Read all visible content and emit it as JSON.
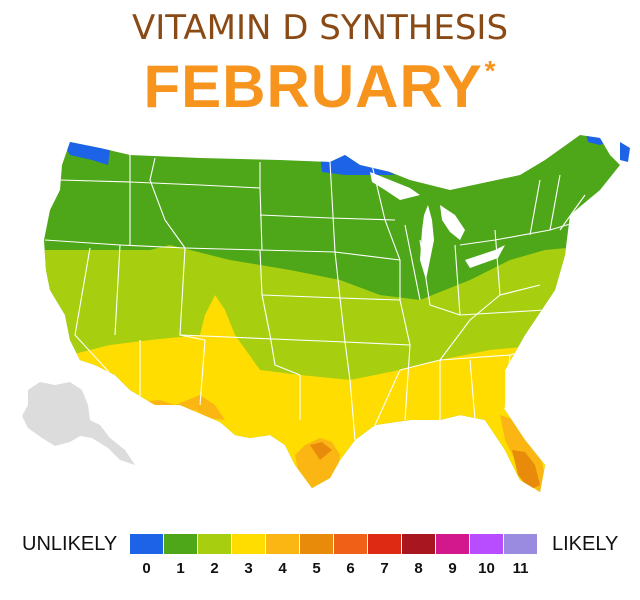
{
  "title": "VITAMIN D SYNTHESIS",
  "month": "FEBRUARY",
  "month_footnote": "*",
  "legend": {
    "left_label": "UNLIKELY",
    "right_label": "LIKELY",
    "levels": [
      {
        "value": "0",
        "color": "#1d63e8"
      },
      {
        "value": "1",
        "color": "#4ea619"
      },
      {
        "value": "2",
        "color": "#a7cf0f"
      },
      {
        "value": "3",
        "color": "#ffdd00"
      },
      {
        "value": "4",
        "color": "#fbb614"
      },
      {
        "value": "5",
        "color": "#e88a0a"
      },
      {
        "value": "6",
        "color": "#f06016"
      },
      {
        "value": "7",
        "color": "#de2a12"
      },
      {
        "value": "8",
        "color": "#a81620"
      },
      {
        "value": "9",
        "color": "#d2188c"
      },
      {
        "value": "10",
        "color": "#b74dff"
      },
      {
        "value": "11",
        "color": "#9a8ae0"
      }
    ]
  },
  "colors": {
    "title": "#8a4a15",
    "month": "#f7941d",
    "alaska": "#dcdcdc",
    "state_borders": "#ffffff"
  }
}
